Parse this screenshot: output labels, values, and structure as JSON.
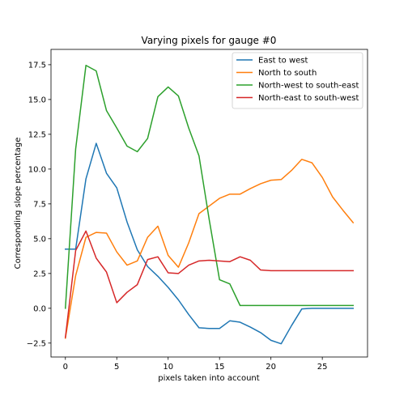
{
  "chart_data": {
    "type": "line",
    "title": "Varying pixels for gauge #0",
    "xlabel": "pixels taken into account",
    "ylabel": "Corresponding slope percentage",
    "xlim": [
      -1.4,
      29.4
    ],
    "ylim": [
      -3.5,
      18.6
    ],
    "xticks": [
      0,
      5,
      10,
      15,
      20,
      25
    ],
    "yticks": [
      -2.5,
      0.0,
      2.5,
      5.0,
      7.5,
      10.0,
      12.5,
      15.0,
      17.5
    ],
    "ytick_labels": [
      "−2.5",
      "0.0",
      "2.5",
      "5.0",
      "7.5",
      "10.0",
      "12.5",
      "15.0",
      "17.5"
    ],
    "grid": false,
    "legend_position": "top-right",
    "x": [
      0,
      1,
      2,
      3,
      4,
      5,
      6,
      7,
      8,
      9,
      10,
      11,
      12,
      13,
      14,
      15,
      16,
      17,
      18,
      19,
      20,
      21,
      22,
      23,
      24,
      25,
      26,
      27,
      28
    ],
    "series": [
      {
        "name": "East to west",
        "color": "#1f77b4",
        "values": [
          4.25,
          4.25,
          9.3,
          11.85,
          9.7,
          8.65,
          6.2,
          4.2,
          3.0,
          2.3,
          1.5,
          0.6,
          -0.45,
          -1.4,
          -1.45,
          -1.45,
          -0.9,
          -1.0,
          -1.35,
          -1.75,
          -2.3,
          -2.55,
          -1.25,
          -0.05,
          0.0,
          0.0,
          0.0,
          0.0,
          0.0
        ]
      },
      {
        "name": "North to south",
        "color": "#ff7f0e",
        "values": [
          -2.15,
          2.35,
          5.1,
          5.45,
          5.4,
          4.05,
          3.1,
          3.4,
          5.1,
          5.9,
          3.8,
          2.95,
          4.7,
          6.8,
          7.35,
          7.9,
          8.2,
          8.2,
          8.6,
          8.95,
          9.2,
          9.25,
          9.9,
          10.7,
          10.45,
          9.4,
          8.0,
          7.05,
          6.15
        ]
      },
      {
        "name": "North-west to south-east",
        "color": "#2ca02c",
        "values": [
          0.0,
          11.45,
          17.45,
          17.05,
          14.2,
          12.95,
          11.65,
          11.25,
          12.2,
          15.2,
          15.9,
          15.25,
          12.95,
          10.95,
          6.35,
          2.05,
          1.75,
          0.2,
          0.2,
          0.2,
          0.2,
          0.2,
          0.2,
          0.2,
          0.2,
          0.2,
          0.2,
          0.2,
          0.2
        ]
      },
      {
        "name": "North-east to south-west",
        "color": "#d62728",
        "values": [
          -2.1,
          4.15,
          5.55,
          3.6,
          2.6,
          0.4,
          1.15,
          1.7,
          3.5,
          3.7,
          2.55,
          2.5,
          3.1,
          3.4,
          3.45,
          3.4,
          3.35,
          3.7,
          3.45,
          2.75,
          2.7,
          2.7,
          2.7,
          2.7,
          2.7,
          2.7,
          2.7,
          2.7,
          2.7
        ]
      }
    ]
  }
}
